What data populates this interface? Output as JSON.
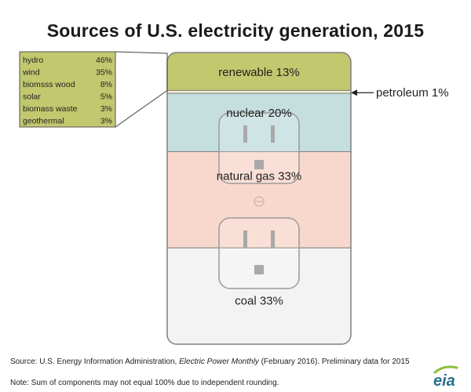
{
  "chart_data": {
    "type": "stacked-bar",
    "title": "Sources of U.S. electricity generation, 2015",
    "segments": [
      {
        "name": "renewable",
        "value": 13,
        "label": "renewable 13%",
        "color": "#c2c86e"
      },
      {
        "name": "petroleum",
        "value": 1,
        "label": "petroleum 1%",
        "color": "#f4eed0"
      },
      {
        "name": "nuclear",
        "value": 20,
        "label": "nuclear 20%",
        "color": "#c5dede"
      },
      {
        "name": "natural gas",
        "value": 33,
        "label": "natural gas 33%",
        "color": "#f8d8cc"
      },
      {
        "name": "coal",
        "value": 33,
        "label": "coal 33%",
        "color": "#f3f3f3"
      }
    ],
    "renewable_breakdown": [
      {
        "name": "hydro",
        "value": 46,
        "label": "46%"
      },
      {
        "name": "wind",
        "value": 35,
        "label": "35%"
      },
      {
        "name": "biomsss wood",
        "value": 8,
        "label": "8%"
      },
      {
        "name": "solar",
        "value": 5,
        "label": "5%"
      },
      {
        "name": "biomass waste",
        "value": 3,
        "label": "3%"
      },
      {
        "name": "geothermal",
        "value": 3,
        "label": "3%"
      }
    ]
  },
  "footer": {
    "source_prefix": "Source: U.S. Energy Information Administration, ",
    "source_title": "Electric Power Monthly",
    "source_suffix": " (February 2016). Preliminary data for 2015",
    "note": "Note: Sum of components may not equal 100% due to independent rounding.",
    "logo_text": "eia"
  },
  "colors": {
    "outlet_border": "#7f7f7f",
    "legend_bg": "#c2c86e",
    "legend_border": "#555555",
    "logo_text": "#2a6f8f",
    "logo_swoosh": "#8cbf3f"
  }
}
